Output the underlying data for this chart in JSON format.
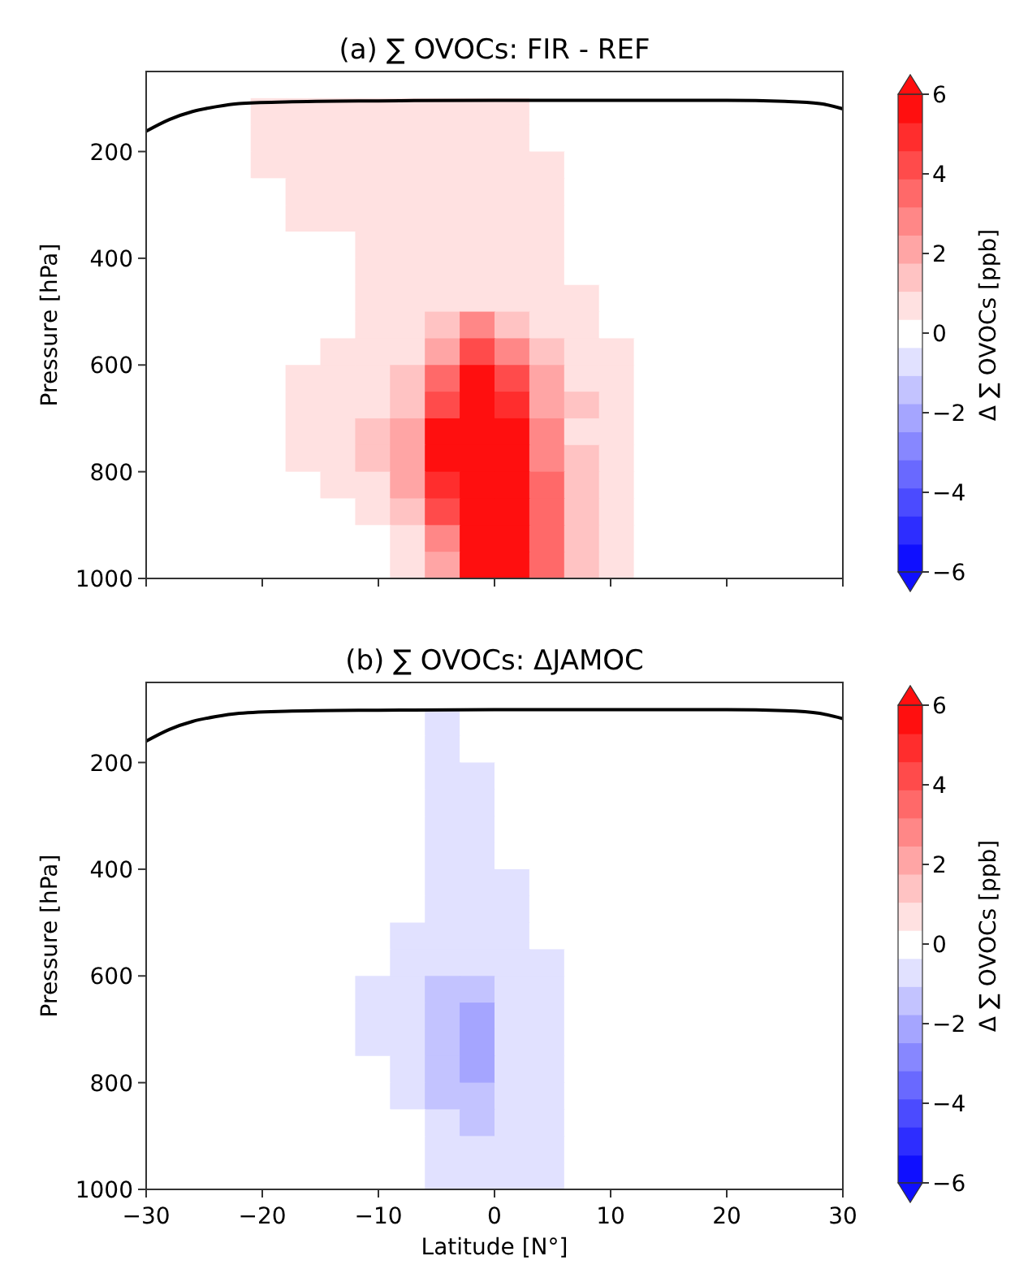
{
  "chart_data": [
    {
      "type": "heatmap",
      "title": "(a) ∑ OVOCs: FIR - REF",
      "ylabel": "Pressure [hPa]",
      "clabel": "Δ ∑ OVOCs [ppb]",
      "tick_labels": "y",
      "x": [
        -28.5,
        -25.5,
        -22.5,
        -19.5,
        -16.5,
        -13.5,
        -10.5,
        -7.5,
        -4.5,
        -1.5,
        1.5,
        4.5,
        7.5,
        10.5,
        13.5,
        16.5,
        19.5,
        22.5,
        25.5,
        28.5
      ],
      "y": [
        75,
        125,
        175,
        225,
        275,
        325,
        375,
        425,
        475,
        525,
        575,
        625,
        675,
        725,
        775,
        825,
        875,
        925,
        975
      ],
      "xlim": [
        -30,
        30
      ],
      "xticks": [
        -30,
        -20,
        -10,
        0,
        10,
        20,
        30
      ],
      "ylim": [
        1000,
        50
      ],
      "yticks": [
        200,
        400,
        600,
        800,
        1000
      ],
      "clim": [
        -6,
        6
      ],
      "cticks": [
        {
          "value": -6,
          "label": "−6"
        },
        {
          "value": -4,
          "label": "−4"
        },
        {
          "value": -2,
          "label": "−2"
        },
        0,
        2,
        4,
        6
      ],
      "cells": [
        [
          0,
          0,
          0,
          0,
          0,
          0,
          0,
          0,
          0,
          0,
          0,
          0,
          0,
          0,
          0,
          0,
          0,
          0,
          0,
          0
        ],
        [
          0,
          0,
          0,
          0.7,
          0.7,
          0.7,
          0.7,
          0.7,
          0.7,
          0.7,
          0.7,
          0,
          0,
          0,
          0,
          0,
          0,
          0,
          0,
          0
        ],
        [
          0,
          0,
          0,
          0.7,
          0.7,
          0.7,
          0.7,
          0.7,
          0.7,
          0.7,
          0.7,
          0,
          0,
          0,
          0,
          0,
          0,
          0,
          0,
          0
        ],
        [
          0,
          0,
          0,
          0.7,
          0.7,
          0.7,
          0.7,
          0.7,
          0.7,
          0.7,
          0.7,
          0.7,
          0,
          0,
          0,
          0,
          0,
          0,
          0,
          0
        ],
        [
          0,
          0,
          0,
          0,
          0.7,
          0.7,
          0.7,
          0.7,
          0.7,
          0.7,
          0.7,
          0.7,
          0,
          0,
          0,
          0,
          0,
          0,
          0,
          0
        ],
        [
          0,
          0,
          0,
          0,
          0.7,
          0.7,
          0.7,
          0.7,
          0.7,
          0.7,
          0.7,
          0.7,
          0,
          0,
          0,
          0,
          0,
          0,
          0,
          0
        ],
        [
          0,
          0,
          0,
          0,
          0,
          0,
          0.7,
          0.7,
          0.7,
          0.7,
          0.7,
          0.7,
          0,
          0,
          0,
          0,
          0,
          0,
          0,
          0
        ],
        [
          0,
          0,
          0,
          0,
          0,
          0,
          0.7,
          0.7,
          0.7,
          0.7,
          0.7,
          0.7,
          0,
          0,
          0,
          0,
          0,
          0,
          0,
          0
        ],
        [
          0,
          0,
          0,
          0,
          0,
          0,
          0.7,
          0.7,
          0.7,
          0.7,
          0.7,
          0.7,
          0.7,
          0,
          0,
          0,
          0,
          0,
          0,
          0
        ],
        [
          0,
          0,
          0,
          0,
          0,
          0,
          0.7,
          0.7,
          1.3,
          2.7,
          1.3,
          0.7,
          0.7,
          0,
          0,
          0,
          0,
          0,
          0,
          0
        ],
        [
          0,
          0,
          0,
          0,
          0,
          0.7,
          0.7,
          0.7,
          2,
          4,
          2.7,
          1.3,
          0.7,
          0.7,
          0,
          0,
          0,
          0,
          0,
          0
        ],
        [
          0,
          0,
          0,
          0,
          0.7,
          0.7,
          0.7,
          1.3,
          3.3,
          6,
          4,
          2,
          0.7,
          0.7,
          0,
          0,
          0,
          0,
          0,
          0
        ],
        [
          0,
          0,
          0,
          0,
          0.7,
          0.7,
          0.7,
          1.3,
          4,
          6,
          4.7,
          2,
          1.3,
          0.7,
          0,
          0,
          0,
          0,
          0,
          0
        ],
        [
          0,
          0,
          0,
          0,
          0.7,
          0.7,
          1.3,
          2,
          5.3,
          6,
          5.3,
          2.7,
          0.7,
          0.7,
          0,
          0,
          0,
          0,
          0,
          0
        ],
        [
          0,
          0,
          0,
          0,
          0.7,
          0.7,
          1.3,
          2,
          5.3,
          6,
          6,
          2.7,
          1.3,
          0.7,
          0,
          0,
          0,
          0,
          0,
          0
        ],
        [
          0,
          0,
          0,
          0,
          0,
          0.7,
          0.7,
          2,
          4.7,
          6,
          6,
          3.3,
          1.3,
          0.7,
          0,
          0,
          0,
          0,
          0,
          0
        ],
        [
          0,
          0,
          0,
          0,
          0,
          0,
          0.7,
          1.3,
          4,
          6,
          6,
          3.3,
          1.3,
          0.7,
          0,
          0,
          0,
          0,
          0,
          0
        ],
        [
          0,
          0,
          0,
          0,
          0,
          0,
          0,
          0.7,
          2.7,
          6,
          6,
          3.3,
          1.3,
          0.7,
          0,
          0,
          0,
          0,
          0,
          0
        ],
        [
          0,
          0,
          0,
          0,
          0,
          0,
          0,
          0.7,
          2,
          6,
          6,
          3.3,
          1.3,
          0.7,
          0,
          0,
          0,
          0,
          0,
          0
        ]
      ],
      "series": [
        {
          "type": "line",
          "color": "#000000",
          "x": [
            -30,
            -28,
            -26,
            -24,
            -22,
            -18,
            -10,
            0,
            10,
            20,
            25,
            28,
            30
          ],
          "values": [
            162,
            140,
            125,
            116,
            110,
            107,
            105,
            104,
            104,
            104,
            106,
            110,
            120
          ]
        }
      ]
    },
    {
      "type": "heatmap",
      "title": "(b) ∑ OVOCs: ΔJAMOC",
      "xlabel": "Latitude [N°]",
      "ylabel": "Pressure [hPa]",
      "clabel": "Δ ∑ OVOCs [ppb]",
      "x": [
        -28.5,
        -25.5,
        -22.5,
        -19.5,
        -16.5,
        -13.5,
        -10.5,
        -7.5,
        -4.5,
        -1.5,
        1.5,
        4.5,
        7.5,
        10.5,
        13.5,
        16.5,
        19.5,
        22.5,
        25.5,
        28.5
      ],
      "y": [
        75,
        125,
        175,
        225,
        275,
        325,
        375,
        425,
        475,
        525,
        575,
        625,
        675,
        725,
        775,
        825,
        875,
        925,
        975
      ],
      "xlim": [
        -30,
        30
      ],
      "xticks": [
        {
          "value": -30,
          "label": "−30"
        },
        {
          "value": -20,
          "label": "−20"
        },
        {
          "value": -10,
          "label": "−10"
        },
        0,
        10,
        20,
        30
      ],
      "ylim": [
        1000,
        50
      ],
      "yticks": [
        200,
        400,
        600,
        800,
        1000
      ],
      "clim": [
        -6,
        6
      ],
      "cticks": [
        {
          "value": -6,
          "label": "−6"
        },
        {
          "value": -4,
          "label": "−4"
        },
        {
          "value": -2,
          "label": "−2"
        },
        0,
        2,
        4,
        6
      ],
      "cells": [
        [
          0,
          0,
          0,
          0,
          0,
          0,
          0,
          0,
          0,
          0,
          0,
          0,
          0,
          0,
          0,
          0,
          0,
          0,
          0,
          0
        ],
        [
          0,
          0,
          0,
          0,
          0,
          0,
          0,
          0,
          -0.7,
          0,
          0,
          0,
          0,
          0,
          0,
          0,
          0,
          0,
          0,
          0
        ],
        [
          0,
          0,
          0,
          0,
          0,
          0,
          0,
          0,
          -0.7,
          0,
          0,
          0,
          0,
          0,
          0,
          0,
          0,
          0,
          0,
          0
        ],
        [
          0,
          0,
          0,
          0,
          0,
          0,
          0,
          0,
          -0.7,
          -0.7,
          0,
          0,
          0,
          0,
          0,
          0,
          0,
          0,
          0,
          0
        ],
        [
          0,
          0,
          0,
          0,
          0,
          0,
          0,
          0,
          -0.7,
          -0.7,
          0,
          0,
          0,
          0,
          0,
          0,
          0,
          0,
          0,
          0
        ],
        [
          0,
          0,
          0,
          0,
          0,
          0,
          0,
          0,
          -0.7,
          -0.7,
          0,
          0,
          0,
          0,
          0,
          0,
          0,
          0,
          0,
          0
        ],
        [
          0,
          0,
          0,
          0,
          0,
          0,
          0,
          0,
          -0.7,
          -0.7,
          0,
          0,
          0,
          0,
          0,
          0,
          0,
          0,
          0,
          0
        ],
        [
          0,
          0,
          0,
          0,
          0,
          0,
          0,
          0,
          -0.7,
          -0.7,
          -0.7,
          0,
          0,
          0,
          0,
          0,
          0,
          0,
          0,
          0
        ],
        [
          0,
          0,
          0,
          0,
          0,
          0,
          0,
          0,
          -0.7,
          -0.7,
          -0.7,
          0,
          0,
          0,
          0,
          0,
          0,
          0,
          0,
          0
        ],
        [
          0,
          0,
          0,
          0,
          0,
          0,
          0,
          -0.7,
          -0.7,
          -0.7,
          -0.7,
          0,
          0,
          0,
          0,
          0,
          0,
          0,
          0,
          0
        ],
        [
          0,
          0,
          0,
          0,
          0,
          0,
          0,
          -0.7,
          -0.7,
          -0.7,
          -0.7,
          -0.7,
          0,
          0,
          0,
          0,
          0,
          0,
          0,
          0
        ],
        [
          0,
          0,
          0,
          0,
          0,
          0,
          -0.7,
          -0.7,
          -1.3,
          -1.3,
          -0.7,
          -0.7,
          0,
          0,
          0,
          0,
          0,
          0,
          0,
          0
        ],
        [
          0,
          0,
          0,
          0,
          0,
          0,
          -0.7,
          -0.7,
          -1.3,
          -2,
          -0.7,
          -0.7,
          0,
          0,
          0,
          0,
          0,
          0,
          0,
          0
        ],
        [
          0,
          0,
          0,
          0,
          0,
          0,
          -0.7,
          -0.7,
          -1.3,
          -2,
          -0.7,
          -0.7,
          0,
          0,
          0,
          0,
          0,
          0,
          0,
          0
        ],
        [
          0,
          0,
          0,
          0,
          0,
          0,
          0,
          -0.7,
          -1.3,
          -2,
          -0.7,
          -0.7,
          0,
          0,
          0,
          0,
          0,
          0,
          0,
          0
        ],
        [
          0,
          0,
          0,
          0,
          0,
          0,
          0,
          -0.7,
          -1.3,
          -1.3,
          -0.7,
          -0.7,
          0,
          0,
          0,
          0,
          0,
          0,
          0,
          0
        ],
        [
          0,
          0,
          0,
          0,
          0,
          0,
          0,
          0,
          -0.7,
          -1.3,
          -0.7,
          -0.7,
          0,
          0,
          0,
          0,
          0,
          0,
          0,
          0
        ],
        [
          0,
          0,
          0,
          0,
          0,
          0,
          0,
          0,
          -0.7,
          -0.7,
          -0.7,
          -0.7,
          0,
          0,
          0,
          0,
          0,
          0,
          0,
          0
        ],
        [
          0,
          0,
          0,
          0,
          0,
          0,
          0,
          0,
          -0.7,
          -0.7,
          -0.7,
          -0.7,
          0,
          0,
          0,
          0,
          0,
          0,
          0,
          0
        ]
      ],
      "series": [
        {
          "type": "line",
          "color": "#000000",
          "x": [
            -30,
            -28,
            -26,
            -24,
            -22,
            -18,
            -10,
            0,
            10,
            20,
            25,
            28,
            30
          ],
          "values": [
            160,
            138,
            123,
            114,
            108,
            104,
            102,
            101,
            101,
            101,
            103,
            108,
            118
          ]
        }
      ]
    }
  ]
}
